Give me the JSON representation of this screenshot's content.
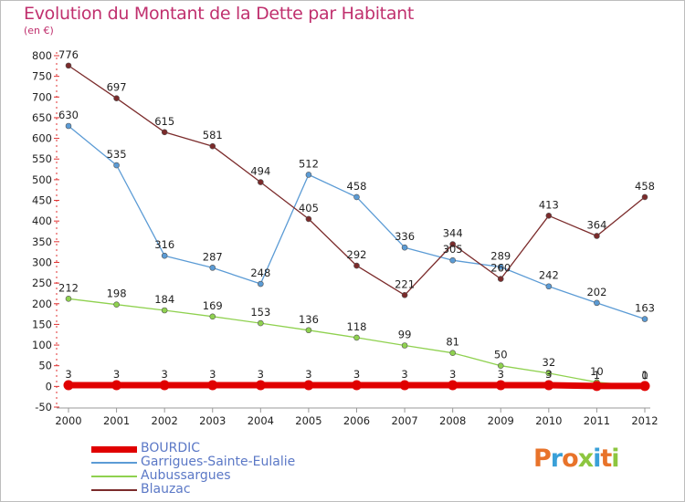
{
  "title": "Evolution du Montant de la Dette par Habitant",
  "subtitle": "(en €)",
  "logo": {
    "letters": [
      "P",
      "r",
      "o",
      "x",
      "i",
      "t",
      "i"
    ],
    "colors": [
      "#e8732a",
      "#3aa0d8",
      "#e8732a",
      "#8dc63f",
      "#3aa0d8",
      "#e8732a",
      "#8dc63f"
    ]
  },
  "chart_data": {
    "type": "line",
    "x": [
      "2000",
      "2001",
      "2002",
      "2003",
      "2004",
      "2005",
      "2006",
      "2007",
      "2008",
      "2009",
      "2010",
      "2011",
      "2012"
    ],
    "ylim": [
      -50,
      800
    ],
    "yticks": [
      "-50",
      "0",
      "50",
      "100",
      "150",
      "200",
      "250",
      "300",
      "350",
      "400",
      "450",
      "500",
      "550",
      "600",
      "650",
      "700",
      "750",
      "800"
    ],
    "grid": false,
    "legend_position": "bottom-left",
    "series": [
      {
        "name": "BOURDIC",
        "color": "#e00000",
        "width": 7,
        "values": [
          3,
          3,
          3,
          3,
          3,
          3,
          3,
          3,
          3,
          3,
          3,
          1,
          1
        ],
        "labels": [
          "3",
          "3",
          "3",
          "3",
          "3",
          "3",
          "3",
          "3",
          "3",
          "3",
          "3",
          "1",
          "1"
        ]
      },
      {
        "name": "Garrigues-Sainte-Eulalie",
        "color": "#5b9bd5",
        "width": 1.3,
        "values": [
          630,
          535,
          316,
          287,
          248,
          512,
          458,
          336,
          305,
          289,
          242,
          202,
          163
        ],
        "labels": [
          "630",
          "535",
          "316",
          "287",
          "248",
          "512",
          "458",
          "336",
          "305",
          "289",
          "242",
          "202",
          "163"
        ]
      },
      {
        "name": "Aubussargues",
        "color": "#8fd14f",
        "width": 1.3,
        "values": [
          212,
          198,
          184,
          169,
          153,
          136,
          118,
          99,
          81,
          50,
          32,
          10,
          0
        ],
        "labels": [
          "212",
          "198",
          "184",
          "169",
          "153",
          "136",
          "118",
          "99",
          "81",
          "50",
          "32",
          "10",
          "0"
        ]
      },
      {
        "name": "Blauzac",
        "color": "#7b2b2b",
        "width": 1.3,
        "values": [
          776,
          697,
          615,
          581,
          494,
          405,
          292,
          221,
          344,
          260,
          413,
          364,
          458
        ],
        "labels": [
          "776",
          "697",
          "615",
          "581",
          "494",
          "405",
          "292",
          "221",
          "344",
          "260",
          "413",
          "364",
          "458"
        ]
      }
    ]
  }
}
